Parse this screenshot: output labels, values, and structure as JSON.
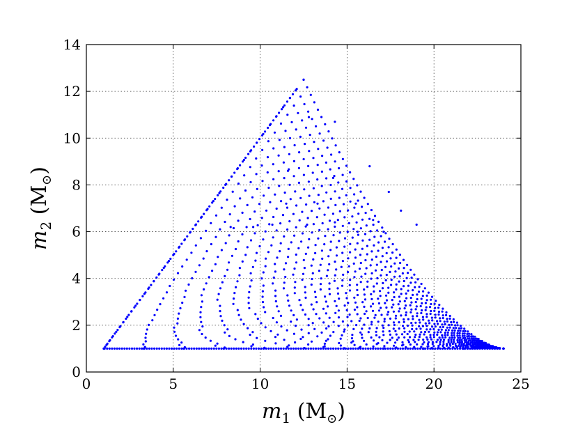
{
  "chart_data": {
    "type": "scatter",
    "title": "",
    "xlabel": {
      "var": "m",
      "sub": "1",
      "unit_open": " (M",
      "unit_sub": "⊙",
      "unit_close": ")"
    },
    "ylabel": {
      "var": "m",
      "sub": "2",
      "unit_open": " (M",
      "unit_sub": "⊙",
      "unit_close": ")"
    },
    "xlim": [
      0,
      25
    ],
    "ylim": [
      0,
      14
    ],
    "xticks": [
      0,
      5,
      10,
      15,
      20,
      25
    ],
    "yticks": [
      0,
      2,
      4,
      6,
      8,
      10,
      12,
      14
    ],
    "grid": true,
    "legend": "none",
    "marker_color": "#0000ff",
    "series": [
      {
        "points": [
          [
            12.5,
            12.5
          ],
          [
            12.8,
            10.9
          ],
          [
            14.3,
            10.7
          ],
          [
            16.3,
            8.8
          ],
          [
            14.2,
            8.3
          ],
          [
            17.4,
            7.7
          ],
          [
            11.6,
            8.6
          ],
          [
            15.5,
            7.2
          ],
          [
            11.5,
            7.2
          ],
          [
            18.1,
            6.9
          ],
          [
            13.3,
            7.2
          ],
          [
            16.5,
            6.5
          ],
          [
            14.3,
            6.4
          ],
          [
            19.0,
            6.3
          ],
          [
            12.7,
            6.3
          ],
          [
            10.7,
            6.3
          ],
          [
            9.6,
            6.2
          ],
          [
            8.3,
            6.2
          ],
          [
            15.6,
            6.0
          ],
          [
            17.1,
            6.0
          ]
        ]
      }
    ]
  }
}
